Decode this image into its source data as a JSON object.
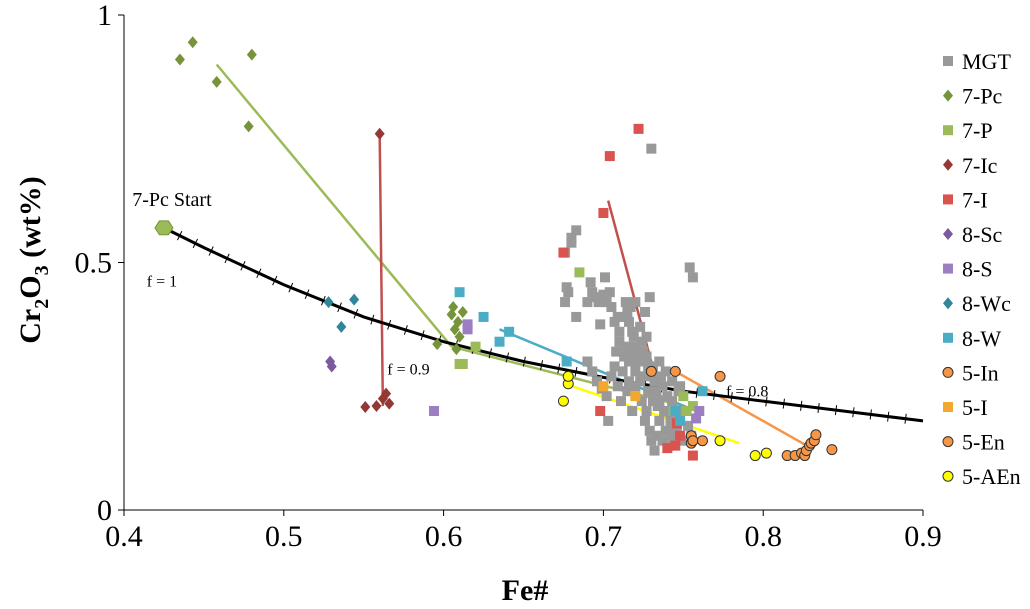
{
  "chart_data": {
    "type": "scatter",
    "title": "",
    "xlabel": "Fe#",
    "ylabel_main": "Cr",
    "ylabel_sub1": "2",
    "ylabel_mid": "O",
    "ylabel_sub2": "3",
    "ylabel_tail": " (wt%)",
    "xlim": [
      0.4,
      0.9
    ],
    "ylim": [
      0,
      1
    ],
    "xticks": [
      0.4,
      0.5,
      0.6,
      0.7,
      0.8,
      0.9
    ],
    "xtick_labels": [
      "0.4",
      "0.5",
      "0.6",
      "0.7",
      "0.8",
      "0.9"
    ],
    "yticks": [
      0,
      0.5,
      1
    ],
    "ytick_labels": [
      "0",
      "0.5",
      "1"
    ],
    "grid": false,
    "legend_position": "right",
    "series": [
      {
        "name": "MGT",
        "marker": "square",
        "color": "#999999",
        "points": [
          [
            0.676,
            0.52
          ],
          [
            0.68,
            0.55
          ],
          [
            0.683,
            0.565
          ],
          [
            0.68,
            0.54
          ],
          [
            0.677,
            0.45
          ],
          [
            0.678,
            0.44
          ],
          [
            0.676,
            0.42
          ],
          [
            0.683,
            0.39
          ],
          [
            0.69,
            0.42
          ],
          [
            0.692,
            0.46
          ],
          [
            0.693,
            0.44
          ],
          [
            0.695,
            0.43
          ],
          [
            0.697,
            0.42
          ],
          [
            0.698,
            0.375
          ],
          [
            0.7,
            0.435
          ],
          [
            0.701,
            0.47
          ],
          [
            0.702,
            0.42
          ],
          [
            0.704,
            0.44
          ],
          [
            0.705,
            0.41
          ],
          [
            0.707,
            0.38
          ],
          [
            0.709,
            0.39
          ],
          [
            0.71,
            0.36
          ],
          [
            0.712,
            0.39
          ],
          [
            0.714,
            0.42
          ],
          [
            0.716,
            0.38
          ],
          [
            0.717,
            0.41
          ],
          [
            0.718,
            0.36
          ],
          [
            0.719,
            0.35
          ],
          [
            0.72,
            0.33
          ],
          [
            0.722,
            0.31
          ],
          [
            0.723,
            0.37
          ],
          [
            0.724,
            0.34
          ],
          [
            0.725,
            0.32
          ],
          [
            0.726,
            0.3
          ],
          [
            0.727,
            0.35
          ],
          [
            0.728,
            0.29
          ],
          [
            0.729,
            0.43
          ],
          [
            0.73,
            0.73
          ],
          [
            0.731,
            0.27
          ],
          [
            0.732,
            0.26
          ],
          [
            0.733,
            0.24
          ],
          [
            0.735,
            0.22
          ],
          [
            0.736,
            0.27
          ],
          [
            0.738,
            0.2
          ],
          [
            0.74,
            0.23
          ],
          [
            0.742,
            0.18
          ],
          [
            0.744,
            0.2
          ],
          [
            0.746,
            0.17
          ],
          [
            0.748,
            0.25
          ],
          [
            0.754,
            0.49
          ],
          [
            0.756,
            0.47
          ],
          [
            0.69,
            0.3
          ],
          [
            0.693,
            0.28
          ],
          [
            0.696,
            0.26
          ],
          [
            0.699,
            0.245
          ],
          [
            0.702,
            0.23
          ],
          [
            0.703,
            0.18
          ],
          [
            0.705,
            0.27
          ],
          [
            0.707,
            0.29
          ],
          [
            0.709,
            0.25
          ],
          [
            0.711,
            0.22
          ],
          [
            0.713,
            0.31
          ],
          [
            0.715,
            0.24
          ],
          [
            0.716,
            0.26
          ],
          [
            0.718,
            0.2
          ],
          [
            0.72,
            0.28
          ],
          [
            0.721,
            0.3
          ],
          [
            0.723,
            0.26
          ],
          [
            0.724,
            0.22
          ],
          [
            0.726,
            0.18
          ],
          [
            0.727,
            0.2
          ],
          [
            0.729,
            0.16
          ],
          [
            0.73,
            0.14
          ],
          [
            0.732,
            0.12
          ],
          [
            0.733,
            0.15
          ],
          [
            0.735,
            0.18
          ],
          [
            0.737,
            0.14
          ],
          [
            0.739,
            0.16
          ],
          [
            0.741,
            0.13
          ],
          [
            0.743,
            0.15
          ],
          [
            0.745,
            0.16
          ],
          [
            0.747,
            0.18
          ],
          [
            0.749,
            0.14
          ],
          [
            0.751,
            0.2
          ],
          [
            0.753,
            0.17
          ],
          [
            0.755,
            0.15
          ],
          [
            0.71,
            0.34
          ],
          [
            0.714,
            0.33
          ],
          [
            0.719,
            0.32
          ],
          [
            0.723,
            0.3
          ],
          [
            0.727,
            0.31
          ],
          [
            0.731,
            0.29
          ],
          [
            0.735,
            0.3
          ],
          [
            0.739,
            0.28
          ],
          [
            0.743,
            0.26
          ],
          [
            0.747,
            0.24
          ],
          [
            0.726,
            0.4
          ],
          [
            0.72,
            0.42
          ],
          [
            0.715,
            0.4
          ],
          [
            0.708,
            0.32
          ],
          [
            0.712,
            0.28
          ],
          [
            0.716,
            0.3
          ],
          [
            0.72,
            0.25
          ],
          [
            0.725,
            0.27
          ],
          [
            0.728,
            0.24
          ],
          [
            0.731,
            0.22
          ],
          [
            0.734,
            0.21
          ],
          [
            0.737,
            0.25
          ],
          [
            0.74,
            0.2
          ],
          [
            0.743,
            0.22
          ]
        ]
      },
      {
        "name": "7-Pc",
        "marker": "diamond",
        "color": "#77933c",
        "points": [
          [
            0.435,
            0.91
          ],
          [
            0.443,
            0.945
          ],
          [
            0.458,
            0.865
          ],
          [
            0.478,
            0.775
          ],
          [
            0.48,
            0.92
          ],
          [
            0.596,
            0.335
          ],
          [
            0.605,
            0.395
          ],
          [
            0.606,
            0.41
          ],
          [
            0.607,
            0.365
          ],
          [
            0.608,
            0.325
          ],
          [
            0.609,
            0.38
          ],
          [
            0.61,
            0.35
          ],
          [
            0.612,
            0.4
          ]
        ]
      },
      {
        "name": "7-P",
        "marker": "square",
        "color": "#9bbb59",
        "points": [
          [
            0.61,
            0.295
          ],
          [
            0.612,
            0.295
          ],
          [
            0.62,
            0.33
          ],
          [
            0.685,
            0.48
          ],
          [
            0.744,
            0.2
          ],
          [
            0.75,
            0.23
          ],
          [
            0.752,
            0.2
          ],
          [
            0.756,
            0.21
          ]
        ]
      },
      {
        "name": "7-Ic",
        "marker": "diamond",
        "color": "#953735",
        "points": [
          [
            0.56,
            0.76
          ],
          [
            0.551,
            0.208
          ],
          [
            0.558,
            0.21
          ],
          [
            0.562,
            0.225
          ],
          [
            0.564,
            0.235
          ],
          [
            0.566,
            0.215
          ]
        ]
      },
      {
        "name": "7-I",
        "marker": "square",
        "color": "#d9534f",
        "points": [
          [
            0.675,
            0.52
          ],
          [
            0.7,
            0.6
          ],
          [
            0.704,
            0.715
          ],
          [
            0.722,
            0.77
          ],
          [
            0.698,
            0.2
          ],
          [
            0.74,
            0.125
          ],
          [
            0.745,
            0.13
          ],
          [
            0.748,
            0.15
          ],
          [
            0.756,
            0.11
          ],
          [
            0.746,
            0.175
          ]
        ]
      },
      {
        "name": "8-Sc",
        "marker": "diamond",
        "color": "#7b5a9e",
        "points": [
          [
            0.529,
            0.3
          ],
          [
            0.53,
            0.29
          ]
        ]
      },
      {
        "name": "8-S",
        "marker": "square",
        "color": "#9b7fc2",
        "points": [
          [
            0.594,
            0.2
          ],
          [
            0.615,
            0.375
          ],
          [
            0.615,
            0.365
          ],
          [
            0.76,
            0.2
          ],
          [
            0.758,
            0.185
          ]
        ]
      },
      {
        "name": "8-Wc",
        "marker": "diamond",
        "color": "#31859c",
        "points": [
          [
            0.528,
            0.42
          ],
          [
            0.536,
            0.37
          ],
          [
            0.544,
            0.425
          ]
        ]
      },
      {
        "name": "8-W",
        "marker": "square",
        "color": "#4bacc6",
        "points": [
          [
            0.61,
            0.44
          ],
          [
            0.625,
            0.39
          ],
          [
            0.635,
            0.34
          ],
          [
            0.641,
            0.36
          ],
          [
            0.677,
            0.3
          ],
          [
            0.745,
            0.2
          ],
          [
            0.748,
            0.18
          ],
          [
            0.762,
            0.24
          ]
        ]
      },
      {
        "name": "5-In",
        "marker": "circle",
        "color": "#f79646",
        "points": [
          [
            0.755,
            0.15
          ],
          [
            0.755,
            0.135
          ],
          [
            0.756,
            0.14
          ],
          [
            0.762,
            0.14
          ]
        ]
      },
      {
        "name": "5-I",
        "marker": "square",
        "color": "#f0a830",
        "points": [
          [
            0.7,
            0.25
          ],
          [
            0.72,
            0.23
          ]
        ]
      },
      {
        "name": "5-En",
        "marker": "circle",
        "color": "#f79646",
        "points": [
          [
            0.73,
            0.28
          ],
          [
            0.745,
            0.28
          ],
          [
            0.773,
            0.27
          ],
          [
            0.815,
            0.11
          ],
          [
            0.82,
            0.11
          ],
          [
            0.824,
            0.115
          ],
          [
            0.826,
            0.11
          ],
          [
            0.827,
            0.12
          ],
          [
            0.829,
            0.13
          ],
          [
            0.83,
            0.135
          ],
          [
            0.832,
            0.14
          ],
          [
            0.833,
            0.152
          ],
          [
            0.843,
            0.122
          ]
        ]
      },
      {
        "name": "5-AEn",
        "marker": "circle",
        "color": "#ffff00",
        "points": [
          [
            0.675,
            0.22
          ],
          [
            0.678,
            0.255
          ],
          [
            0.678,
            0.27
          ],
          [
            0.773,
            0.14
          ],
          [
            0.795,
            0.11
          ],
          [
            0.802,
            0.115
          ]
        ]
      }
    ],
    "trend_lines": [
      {
        "color": "#9bbb59",
        "points": [
          [
            0.458,
            0.9
          ],
          [
            0.605,
            0.33
          ]
        ]
      },
      {
        "color": "#9bbb59",
        "points": [
          [
            0.605,
            0.33
          ],
          [
            0.75,
            0.21
          ]
        ]
      },
      {
        "color": "#c0504d",
        "points": [
          [
            0.56,
            0.76
          ],
          [
            0.562,
            0.21
          ]
        ]
      },
      {
        "color": "#c0504d",
        "points": [
          [
            0.703,
            0.625
          ],
          [
            0.744,
            0.13
          ]
        ]
      },
      {
        "color": "#4bacc6",
        "points": [
          [
            0.635,
            0.365
          ],
          [
            0.758,
            0.2
          ]
        ]
      },
      {
        "color": "#f79646",
        "points": [
          [
            0.745,
            0.28
          ],
          [
            0.83,
            0.125
          ]
        ]
      },
      {
        "color": "#ffff00",
        "points": [
          [
            0.676,
            0.255
          ],
          [
            0.785,
            0.135
          ]
        ]
      }
    ],
    "model_curve": {
      "color": "#000000",
      "points": [
        [
          0.425,
          0.57
        ],
        [
          0.45,
          0.53
        ],
        [
          0.5,
          0.455
        ],
        [
          0.55,
          0.39
        ],
        [
          0.6,
          0.34
        ],
        [
          0.65,
          0.3
        ],
        [
          0.7,
          0.268
        ],
        [
          0.75,
          0.24
        ],
        [
          0.8,
          0.22
        ],
        [
          0.85,
          0.2
        ],
        [
          0.9,
          0.18
        ]
      ],
      "tick_count": 45
    },
    "annotations": [
      {
        "text": "7-Pc Start",
        "x": 0.425,
        "y": 0.57
      },
      {
        "text": "f = 1",
        "x": 0.425,
        "y": 0.5
      },
      {
        "text": "f = 0.9",
        "x": 0.578,
        "y": 0.33
      },
      {
        "text": "f = 0.8",
        "x": 0.79,
        "y": 0.27
      }
    ]
  }
}
